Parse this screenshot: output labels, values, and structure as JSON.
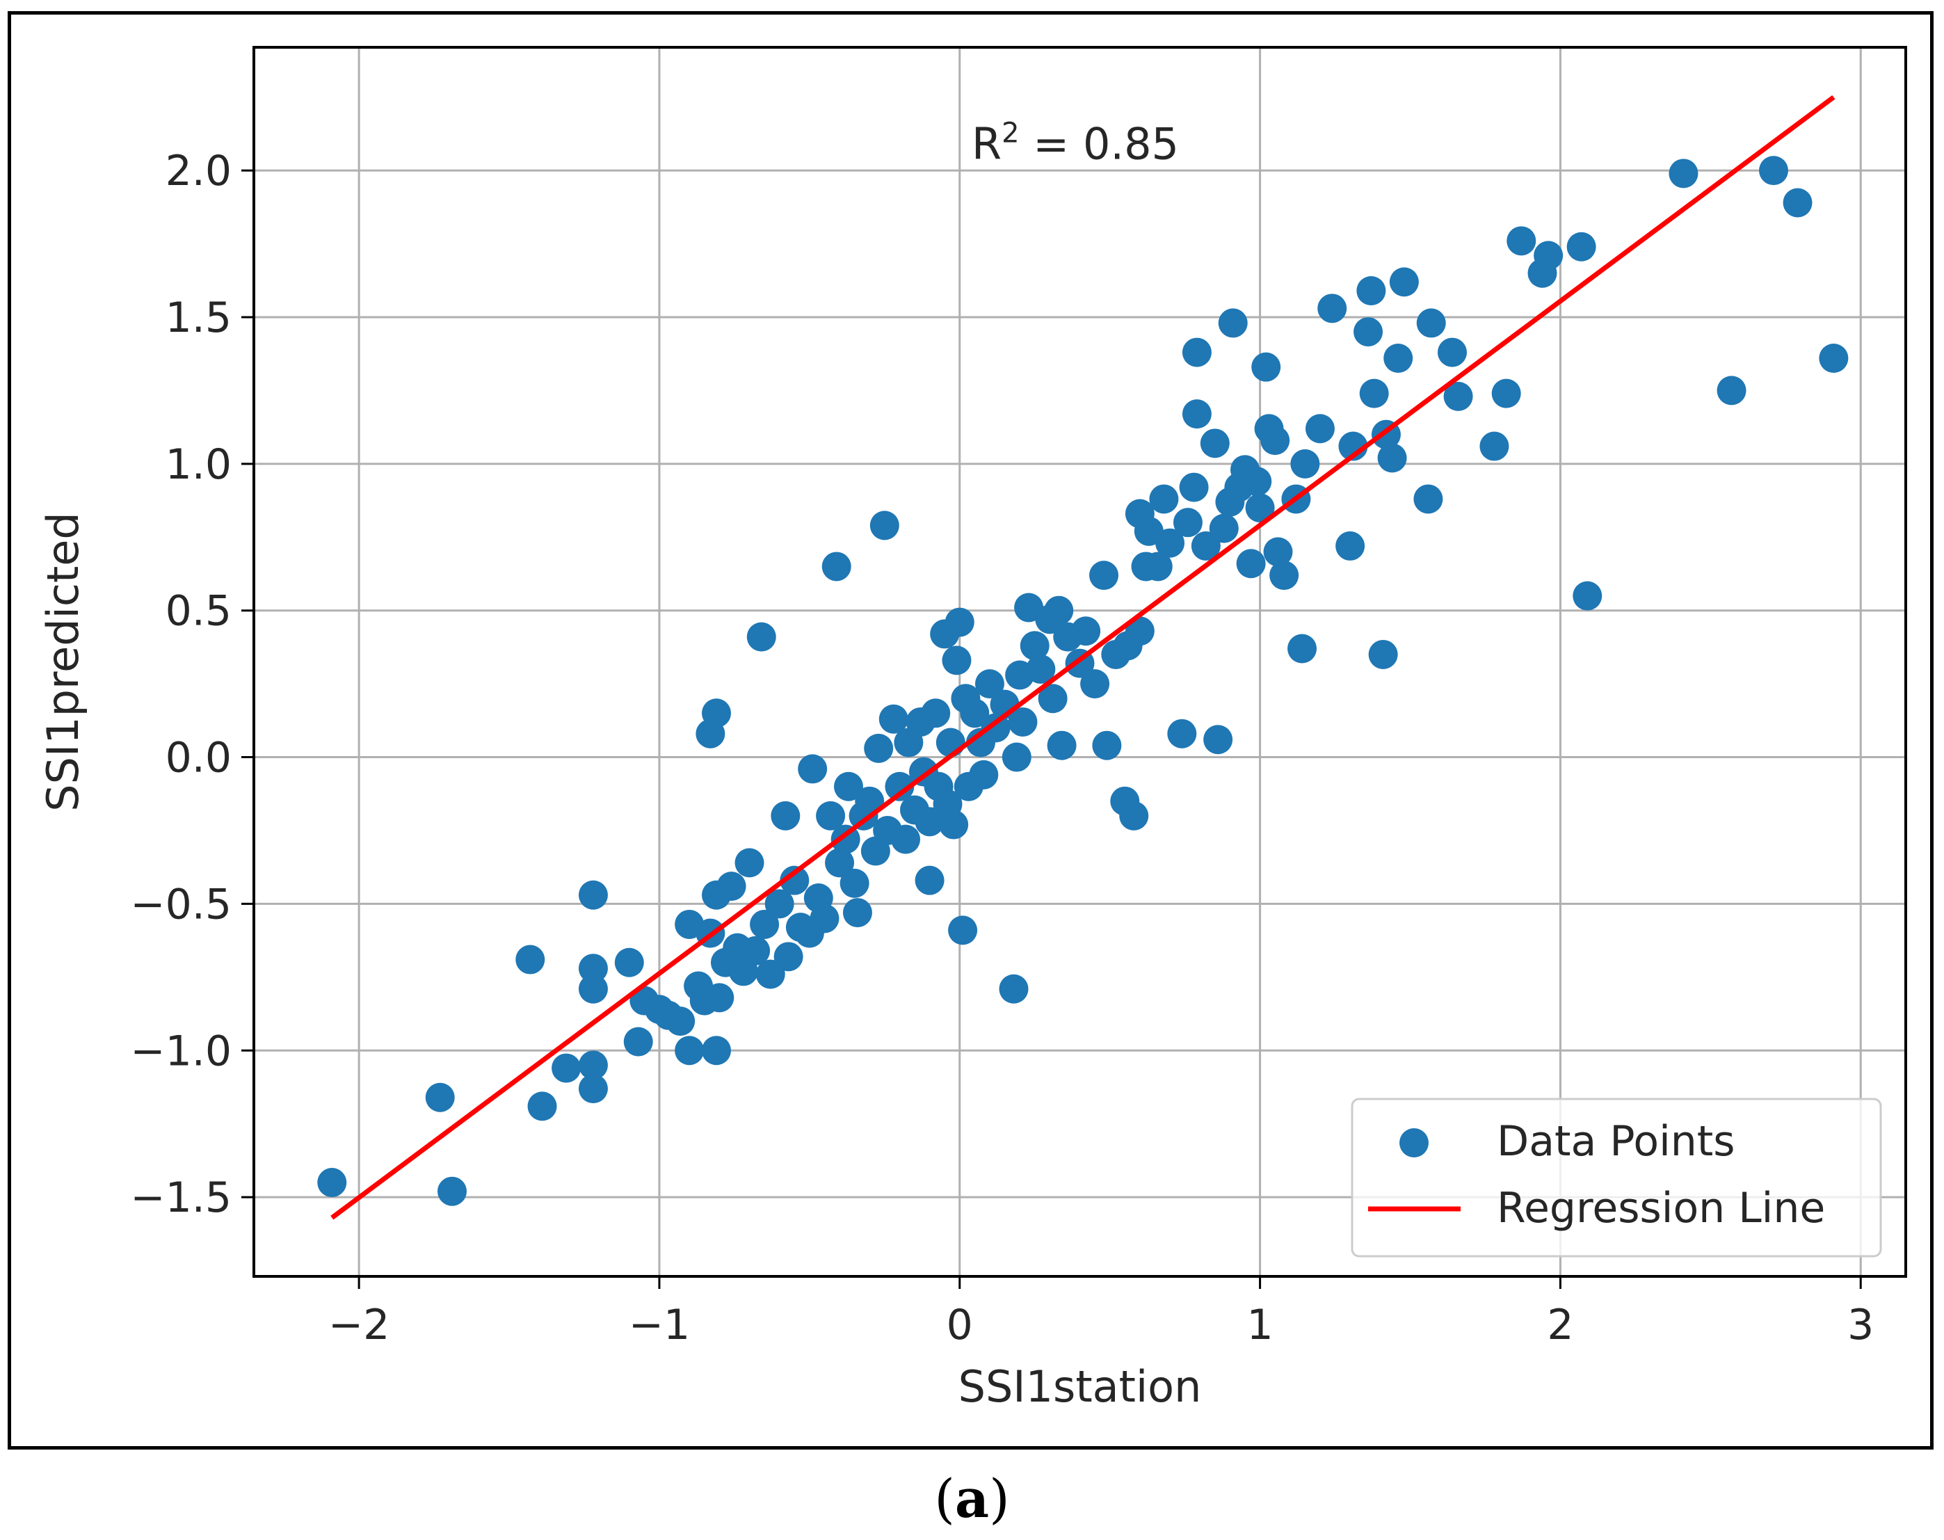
{
  "caption": {
    "open": "(",
    "label": "a",
    "close": ")"
  },
  "chart_data": {
    "type": "scatter",
    "title": "",
    "xlabel": "SSI1station",
    "ylabel": "SSI1predicted",
    "xlim": [
      -2.35,
      3.15
    ],
    "ylim": [
      -1.77,
      2.42
    ],
    "xticks": [
      -2,
      -1,
      0,
      1,
      2,
      3
    ],
    "xtick_labels": [
      "−2",
      "−1",
      "0",
      "1",
      "2",
      "3"
    ],
    "yticks": [
      -1.5,
      -1.0,
      -0.5,
      0.0,
      0.5,
      1.0,
      1.5,
      2.0
    ],
    "ytick_labels": [
      "−1.5",
      "−1.0",
      "−0.5",
      "0.0",
      "0.5",
      "1.0",
      "1.5",
      "2.0"
    ],
    "grid": true,
    "annotation": {
      "text": "R",
      "sup": "2",
      "suffix": " = 0.85",
      "x": 0.04,
      "y": 2.04
    },
    "legend": {
      "position": "lower right",
      "entries": [
        {
          "label": "Data Points",
          "kind": "marker"
        },
        {
          "label": "Regression Line",
          "kind": "line"
        }
      ]
    },
    "colors": {
      "points": "#1f77b4",
      "line": "#ff0000",
      "grid": "#b0b0b0"
    },
    "regression_line": {
      "x": [
        -2.09,
        2.91
      ],
      "y": [
        -1.57,
        2.25
      ]
    },
    "series": [
      {
        "name": "Data Points",
        "points": [
          [
            -2.09,
            -1.45
          ],
          [
            -1.73,
            -1.16
          ],
          [
            -1.69,
            -1.48
          ],
          [
            -1.43,
            -0.69
          ],
          [
            -1.39,
            -1.19
          ],
          [
            -1.31,
            -1.06
          ],
          [
            -1.22,
            -0.47
          ],
          [
            -1.22,
            -0.72
          ],
          [
            -1.22,
            -0.79
          ],
          [
            -1.22,
            -1.05
          ],
          [
            -1.22,
            -1.13
          ],
          [
            -1.1,
            -0.7
          ],
          [
            -1.07,
            -0.97
          ],
          [
            -1.05,
            -0.83
          ],
          [
            -1.0,
            -0.86
          ],
          [
            -0.97,
            -0.88
          ],
          [
            -0.93,
            -0.9
          ],
          [
            -0.9,
            -0.57
          ],
          [
            -0.9,
            -1.0
          ],
          [
            -0.87,
            -0.78
          ],
          [
            -0.85,
            -0.83
          ],
          [
            -0.83,
            -0.6
          ],
          [
            -0.83,
            0.08
          ],
          [
            -0.81,
            0.15
          ],
          [
            -0.81,
            -0.47
          ],
          [
            -0.81,
            -1.0
          ],
          [
            -0.8,
            -0.82
          ],
          [
            -0.78,
            -0.7
          ],
          [
            -0.76,
            -0.44
          ],
          [
            -0.74,
            -0.65
          ],
          [
            -0.72,
            -0.73
          ],
          [
            -0.7,
            -0.36
          ],
          [
            -0.68,
            -0.66
          ],
          [
            -0.66,
            0.41
          ],
          [
            -0.65,
            -0.57
          ],
          [
            -0.63,
            -0.74
          ],
          [
            -0.6,
            -0.5
          ],
          [
            -0.58,
            -0.2
          ],
          [
            -0.57,
            -0.68
          ],
          [
            -0.55,
            -0.42
          ],
          [
            -0.53,
            -0.58
          ],
          [
            -0.5,
            -0.6
          ],
          [
            -0.49,
            -0.04
          ],
          [
            -0.47,
            -0.48
          ],
          [
            -0.45,
            -0.55
          ],
          [
            -0.43,
            -0.2
          ],
          [
            -0.41,
            0.65
          ],
          [
            -0.4,
            -0.36
          ],
          [
            -0.38,
            -0.28
          ],
          [
            -0.37,
            -0.1
          ],
          [
            -0.35,
            -0.43
          ],
          [
            -0.34,
            -0.53
          ],
          [
            -0.32,
            -0.2
          ],
          [
            -0.3,
            -0.15
          ],
          [
            -0.28,
            -0.32
          ],
          [
            -0.27,
            0.03
          ],
          [
            -0.25,
            0.79
          ],
          [
            -0.24,
            -0.25
          ],
          [
            -0.22,
            0.13
          ],
          [
            -0.2,
            -0.1
          ],
          [
            -0.18,
            -0.28
          ],
          [
            -0.17,
            0.05
          ],
          [
            -0.15,
            -0.18
          ],
          [
            -0.13,
            0.12
          ],
          [
            -0.12,
            -0.05
          ],
          [
            -0.1,
            -0.22
          ],
          [
            -0.1,
            -0.42
          ],
          [
            -0.08,
            0.15
          ],
          [
            -0.07,
            -0.1
          ],
          [
            -0.05,
            0.42
          ],
          [
            -0.04,
            -0.16
          ],
          [
            -0.03,
            0.05
          ],
          [
            -0.02,
            -0.23
          ],
          [
            -0.01,
            0.33
          ],
          [
            0.0,
            0.46
          ],
          [
            0.01,
            -0.59
          ],
          [
            0.02,
            0.2
          ],
          [
            0.03,
            -0.1
          ],
          [
            0.05,
            0.15
          ],
          [
            0.07,
            0.05
          ],
          [
            0.08,
            -0.06
          ],
          [
            0.1,
            0.25
          ],
          [
            0.12,
            0.1
          ],
          [
            0.15,
            0.18
          ],
          [
            0.18,
            -0.79
          ],
          [
            0.19,
            0.0
          ],
          [
            0.2,
            0.28
          ],
          [
            0.21,
            0.12
          ],
          [
            0.23,
            0.51
          ],
          [
            0.25,
            0.38
          ],
          [
            0.27,
            0.3
          ],
          [
            0.3,
            0.47
          ],
          [
            0.31,
            0.2
          ],
          [
            0.33,
            0.5
          ],
          [
            0.34,
            0.04
          ],
          [
            0.36,
            0.41
          ],
          [
            0.4,
            0.32
          ],
          [
            0.42,
            0.43
          ],
          [
            0.45,
            0.25
          ],
          [
            0.48,
            0.62
          ],
          [
            0.49,
            0.04
          ],
          [
            0.52,
            0.35
          ],
          [
            0.55,
            -0.15
          ],
          [
            0.56,
            0.38
          ],
          [
            0.58,
            -0.2
          ],
          [
            0.6,
            0.43
          ],
          [
            0.6,
            0.83
          ],
          [
            0.62,
            0.65
          ],
          [
            0.63,
            0.77
          ],
          [
            0.66,
            0.65
          ],
          [
            0.68,
            0.88
          ],
          [
            0.7,
            0.73
          ],
          [
            0.74,
            0.08
          ],
          [
            0.76,
            0.8
          ],
          [
            0.78,
            0.92
          ],
          [
            0.79,
            1.38
          ],
          [
            0.79,
            1.17
          ],
          [
            0.82,
            0.72
          ],
          [
            0.85,
            1.07
          ],
          [
            0.86,
            0.06
          ],
          [
            0.88,
            0.78
          ],
          [
            0.9,
            0.87
          ],
          [
            0.91,
            1.48
          ],
          [
            0.93,
            0.92
          ],
          [
            0.95,
            0.98
          ],
          [
            0.97,
            0.66
          ],
          [
            0.99,
            0.94
          ],
          [
            1.0,
            0.85
          ],
          [
            1.02,
            1.33
          ],
          [
            1.03,
            1.12
          ],
          [
            1.05,
            1.08
          ],
          [
            1.06,
            0.7
          ],
          [
            1.08,
            0.62
          ],
          [
            1.12,
            0.88
          ],
          [
            1.14,
            0.37
          ],
          [
            1.15,
            1.0
          ],
          [
            1.2,
            1.12
          ],
          [
            1.24,
            1.53
          ],
          [
            1.3,
            0.72
          ],
          [
            1.31,
            1.06
          ],
          [
            1.36,
            1.45
          ],
          [
            1.37,
            1.59
          ],
          [
            1.38,
            1.24
          ],
          [
            1.41,
            0.35
          ],
          [
            1.42,
            1.1
          ],
          [
            1.44,
            1.02
          ],
          [
            1.46,
            1.36
          ],
          [
            1.48,
            1.62
          ],
          [
            1.56,
            0.88
          ],
          [
            1.57,
            1.48
          ],
          [
            1.64,
            1.38
          ],
          [
            1.66,
            1.23
          ],
          [
            1.78,
            1.06
          ],
          [
            1.82,
            1.24
          ],
          [
            1.87,
            1.76
          ],
          [
            1.94,
            1.65
          ],
          [
            1.96,
            1.71
          ],
          [
            2.07,
            1.74
          ],
          [
            2.09,
            0.55
          ],
          [
            2.41,
            1.99
          ],
          [
            2.57,
            1.25
          ],
          [
            2.71,
            2.0
          ],
          [
            2.79,
            1.89
          ],
          [
            2.91,
            1.36
          ]
        ]
      }
    ]
  }
}
